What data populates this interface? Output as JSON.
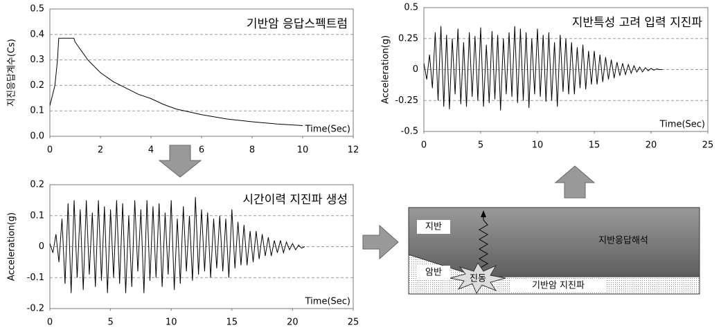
{
  "chart_data": [
    {
      "type": "line",
      "title": "기반암 응답스펙트럼",
      "x_label": "Time(Sec)",
      "y_label": "지진응답계수(Cs)",
      "x": [
        0,
        0.2,
        0.3,
        0.35,
        0.6,
        0.95,
        1.0,
        1.5,
        2,
        2.5,
        3,
        3.5,
        4,
        4.5,
        5,
        6,
        7,
        8,
        9,
        10
      ],
      "values": [
        0.12,
        0.2,
        0.3,
        0.385,
        0.385,
        0.385,
        0.37,
        0.3,
        0.25,
        0.215,
        0.19,
        0.165,
        0.148,
        0.125,
        0.107,
        0.085,
        0.068,
        0.057,
        0.048,
        0.042
      ],
      "color": "#000000",
      "xlim": [
        0,
        12
      ],
      "ylim": [
        0,
        0.5
      ],
      "xticks": [
        0,
        2,
        4,
        6,
        8,
        10,
        12
      ],
      "yticks": [
        {
          "value": 0,
          "label": "0.0"
        },
        0.1,
        0.2,
        0.3,
        0.4,
        0.5
      ],
      "grid": true
    },
    {
      "type": "line",
      "title": "시간이력 지진파 생성",
      "x_label": "Time(Sec)",
      "y_label": "Acceleration(g)",
      "x": [
        0,
        0.25,
        0.5,
        0.75,
        1,
        1.25,
        1.5,
        1.75,
        2,
        2.25,
        2.5,
        2.75,
        3,
        3.25,
        3.5,
        3.75,
        4,
        4.25,
        4.5,
        4.75,
        5,
        5.25,
        5.5,
        5.75,
        6,
        6.25,
        6.5,
        6.75,
        7,
        7.25,
        7.5,
        7.75,
        8,
        8.25,
        8.5,
        8.75,
        9,
        9.25,
        9.5,
        9.75,
        10,
        10.25,
        10.5,
        10.75,
        11,
        11.25,
        11.5,
        11.75,
        12,
        12.25,
        12.5,
        12.75,
        13,
        13.25,
        13.5,
        13.75,
        14,
        14.25,
        14.5,
        14.75,
        15,
        15.25,
        15.5,
        15.75,
        16,
        16.25,
        16.5,
        16.75,
        17,
        17.25,
        17.5,
        17.75,
        18,
        18.25,
        18.5,
        18.75,
        19,
        19.25,
        19.5,
        19.75,
        20,
        20.25,
        20.5,
        20.75,
        21
      ],
      "values": [
        0.01,
        -0.02,
        0.04,
        -0.05,
        0.09,
        -0.12,
        0.14,
        -0.15,
        0.15,
        -0.1,
        0.12,
        -0.14,
        0.15,
        -0.09,
        0.11,
        -0.13,
        0.15,
        -0.11,
        0.13,
        -0.15,
        0.12,
        -0.1,
        0.15,
        -0.12,
        0.14,
        -0.15,
        0.1,
        -0.13,
        0.15,
        -0.08,
        0.12,
        -0.15,
        0.15,
        -0.11,
        0.13,
        -0.1,
        0.14,
        -0.13,
        0.11,
        -0.09,
        0.15,
        -0.14,
        0.09,
        -0.12,
        0.13,
        -0.08,
        0.1,
        -0.11,
        0.16,
        -0.09,
        0.12,
        -0.08,
        0.11,
        -0.1,
        0.09,
        -0.07,
        0.1,
        -0.08,
        0.09,
        -0.1,
        0.12,
        -0.07,
        0.08,
        -0.06,
        0.07,
        -0.06,
        0.05,
        -0.05,
        0.05,
        -0.04,
        0.04,
        -0.03,
        0.03,
        -0.03,
        0.02,
        -0.02,
        0.02,
        -0.02,
        0.015,
        -0.01,
        0.01,
        -0.01,
        0.005,
        -0.005,
        0
      ],
      "color": "#000000",
      "xlim": [
        0,
        25
      ],
      "ylim": [
        -0.2,
        0.2
      ],
      "xticks": [
        0,
        5,
        10,
        15,
        20,
        25
      ],
      "yticks": [
        -0.2,
        -0.1,
        0,
        0.1,
        0.2
      ],
      "grid": true
    },
    {
      "type": "line",
      "title": "지반특성 고려 입력 지진파",
      "x_label": "Time(Sec)",
      "y_label": "Acceleration(g)",
      "x": [
        0,
        0.25,
        0.5,
        0.75,
        1,
        1.25,
        1.5,
        1.75,
        2,
        2.25,
        2.5,
        2.75,
        3,
        3.25,
        3.5,
        3.75,
        4,
        4.25,
        4.5,
        4.75,
        5,
        5.25,
        5.5,
        5.75,
        6,
        6.25,
        6.5,
        6.75,
        7,
        7.25,
        7.5,
        7.75,
        8,
        8.25,
        8.5,
        8.75,
        9,
        9.25,
        9.5,
        9.75,
        10,
        10.25,
        10.5,
        10.75,
        11,
        11.25,
        11.5,
        11.75,
        12,
        12.25,
        12.5,
        12.75,
        13,
        13.25,
        13.5,
        13.75,
        14,
        14.25,
        14.5,
        14.75,
        15,
        15.25,
        15.5,
        15.75,
        16,
        16.25,
        16.5,
        16.75,
        17,
        17.25,
        17.5,
        17.75,
        18,
        18.25,
        18.5,
        18.75,
        19,
        19.25,
        19.5,
        19.75,
        20,
        20.25,
        20.5,
        20.75,
        21
      ],
      "values": [
        0.05,
        -0.08,
        0.12,
        -0.15,
        0.3,
        -0.25,
        0.35,
        -0.3,
        0.28,
        -0.32,
        0.25,
        -0.2,
        0.33,
        -0.28,
        0.22,
        -0.3,
        0.3,
        -0.22,
        0.27,
        -0.25,
        0.34,
        -0.3,
        0.2,
        -0.27,
        0.31,
        -0.24,
        0.28,
        -0.33,
        0.25,
        -0.2,
        0.3,
        -0.22,
        0.35,
        -0.27,
        0.33,
        -0.25,
        0.3,
        -0.31,
        0.25,
        -0.2,
        0.33,
        -0.22,
        0.28,
        -0.26,
        0.3,
        -0.25,
        0.22,
        -0.3,
        0.28,
        -0.18,
        0.25,
        -0.2,
        0.22,
        -0.2,
        0.18,
        -0.15,
        0.2,
        -0.16,
        0.15,
        -0.12,
        0.15,
        -0.12,
        0.12,
        -0.1,
        0.1,
        -0.08,
        0.08,
        -0.07,
        0.06,
        -0.05,
        0.05,
        -0.04,
        0.04,
        -0.03,
        0.03,
        -0.02,
        0.02,
        -0.02,
        0.015,
        -0.01,
        0.01,
        -0.005,
        0.005,
        0,
        0
      ],
      "color": "#000000",
      "xlim": [
        0,
        25
      ],
      "ylim": [
        -0.5,
        0.5
      ],
      "xticks": [
        0,
        5,
        10,
        15,
        20,
        25
      ],
      "yticks": [
        -0.5,
        -0.25,
        0,
        0.25,
        0.5
      ],
      "grid": true
    }
  ],
  "diagram": {
    "ground": "지반",
    "analysis": "지반응답해석",
    "rock": "암반",
    "vibration": "진동",
    "bedrock_wave": "기반암 지진파"
  }
}
